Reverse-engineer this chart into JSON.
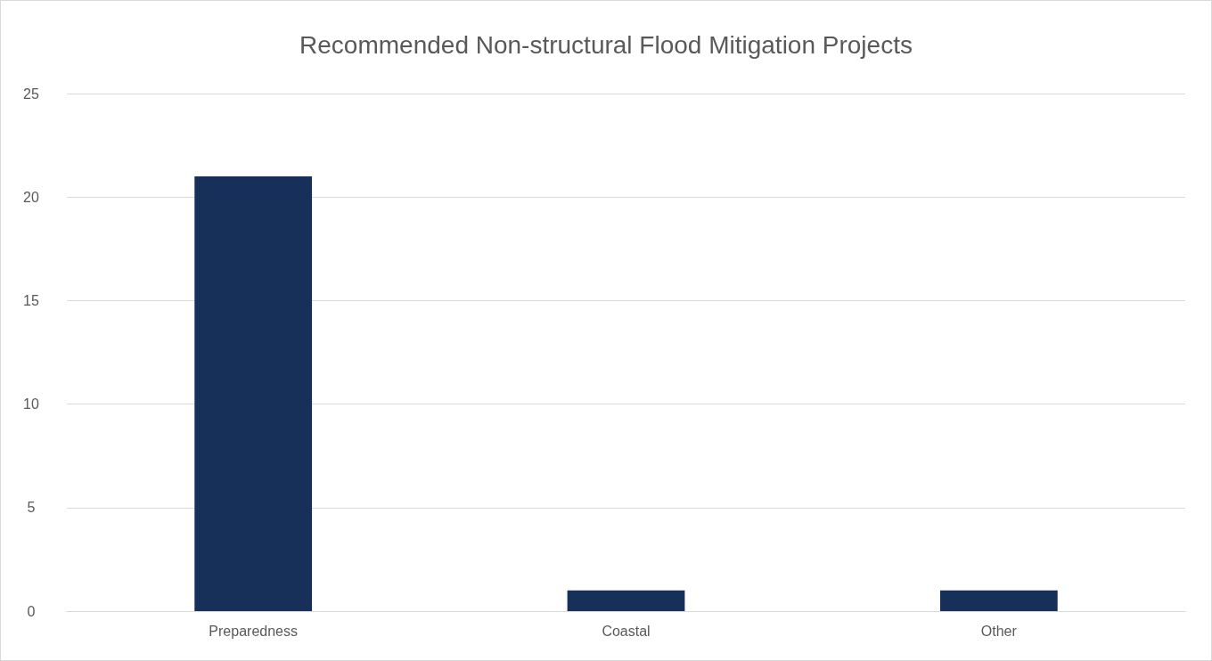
{
  "chart_data": {
    "type": "bar",
    "title": "Recommended Non-structural Flood Mitigation Projects",
    "categories": [
      "Preparedness",
      "Coastal",
      "Other"
    ],
    "values": [
      21,
      1,
      1
    ],
    "color": "#17305a",
    "ylim": [
      0,
      25
    ],
    "yticks": [
      0,
      5,
      10,
      15,
      20,
      25
    ],
    "grid": "y"
  }
}
